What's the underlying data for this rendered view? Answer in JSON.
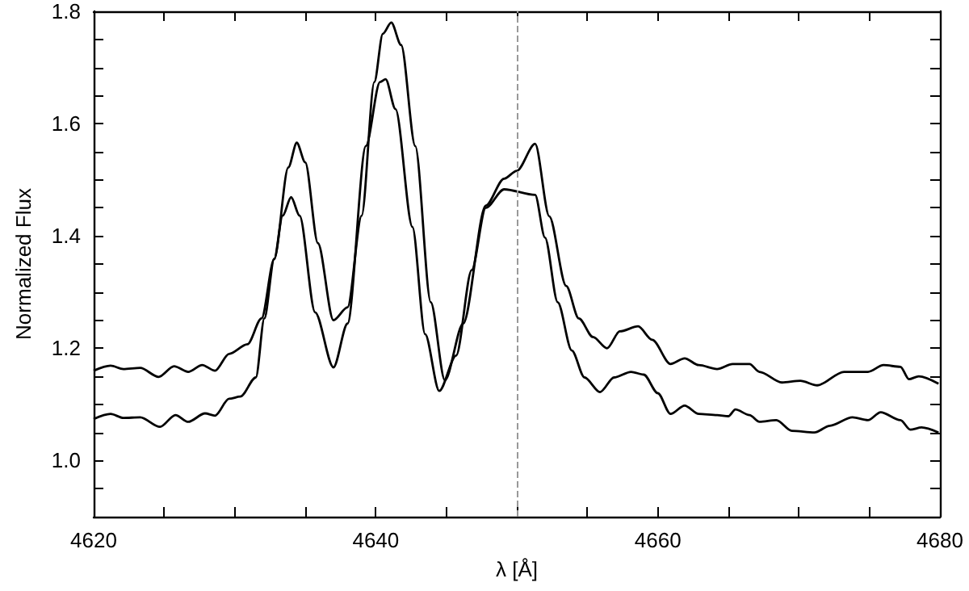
{
  "chart_data": {
    "type": "line",
    "xlabel": "λ [Å]",
    "ylabel": "Normalized Flux",
    "xlim": [
      4620,
      4680
    ],
    "ylim": [
      0.9,
      1.8
    ],
    "xticks": [
      4620,
      {
        "value": 4625,
        "label": null
      },
      {
        "value": 4630,
        "label": null
      },
      {
        "value": 4635,
        "label": null
      },
      4640,
      {
        "value": 4645,
        "label": null
      },
      {
        "value": 4650,
        "label": null
      },
      {
        "value": 4655,
        "label": null
      },
      4660,
      {
        "value": 4665,
        "label": null
      },
      {
        "value": 4670,
        "label": null
      },
      {
        "value": 4675,
        "label": null
      },
      4680
    ],
    "yticks": [
      {
        "value": 0.95,
        "label": null
      },
      {
        "value": 1,
        "label": "1.0"
      },
      {
        "value": 1.05,
        "label": null
      },
      {
        "value": 1.1,
        "label": null
      },
      {
        "value": 1.15,
        "label": null
      },
      {
        "value": 1.2,
        "label": "1.2"
      },
      {
        "value": 1.25,
        "label": null
      },
      {
        "value": 1.3,
        "label": null
      },
      {
        "value": 1.35,
        "label": null
      },
      {
        "value": 1.4,
        "label": "1.4"
      },
      {
        "value": 1.45,
        "label": null
      },
      {
        "value": 1.5,
        "label": null
      },
      {
        "value": 1.55,
        "label": null
      },
      {
        "value": 1.6,
        "label": "1.6"
      },
      {
        "value": 1.65,
        "label": null
      },
      {
        "value": 1.7,
        "label": null
      },
      {
        "value": 1.75,
        "label": null
      },
      {
        "value": 1.8,
        "label": "1.8"
      }
    ],
    "grid": false,
    "marker": "none",
    "line_style": "solid",
    "ref_lines": [
      {
        "axis": "x",
        "value": 4650,
        "color": "#999999",
        "line_style": "dashed"
      }
    ],
    "series": [
      {
        "color": "#000000",
        "x": [
          4620,
          4621.2,
          4622.1,
          4623.3,
          4624.6,
          4625.7,
          4626.7,
          4627.7,
          4628.6,
          4629.6,
          4630.9,
          4631.9,
          4632.8,
          4633.8,
          4634.4,
          4635,
          4635.9,
          4637,
          4638,
          4639,
          4639.9,
          4640.5,
          4641.1,
          4641.8,
          4642.8,
          4643.9,
          4644.9,
          4646.2,
          4647.8,
          4649.1,
          4650,
          4651.3,
          4652.3,
          4653.5,
          4654.4,
          4655.4,
          4656.4,
          4657.3,
          4658.6,
          4659.6,
          4660.9,
          4661.9,
          4662.9,
          4664.2,
          4665.3,
          4666.5,
          4667.2,
          4668.8,
          4670.1,
          4671.3,
          4673.2,
          4674.9,
          4676,
          4677.2,
          4677.8,
          4678.5,
          4679.9
        ],
        "values": [
          1.16,
          1.169,
          1.163,
          1.165,
          1.149,
          1.168,
          1.158,
          1.17,
          1.16,
          1.19,
          1.207,
          1.253,
          1.359,
          1.522,
          1.566,
          1.531,
          1.387,
          1.25,
          1.273,
          1.436,
          1.674,
          1.76,
          1.78,
          1.74,
          1.56,
          1.282,
          1.143,
          1.244,
          1.454,
          1.502,
          1.516,
          1.564,
          1.435,
          1.311,
          1.253,
          1.22,
          1.2,
          1.23,
          1.239,
          1.215,
          1.172,
          1.182,
          1.17,
          1.163,
          1.172,
          1.172,
          1.158,
          1.139,
          1.142,
          1.134,
          1.158,
          1.158,
          1.17,
          1.167,
          1.145,
          1.15,
          1.137
        ]
      },
      {
        "color": "#000000",
        "x": [
          4620,
          4621.2,
          4622.1,
          4623.3,
          4624.7,
          4625.8,
          4626.7,
          4627.9,
          4628.6,
          4629.6,
          4630.4,
          4631.5,
          4632.1,
          4632.8,
          4633.4,
          4634,
          4634.6,
          4635.7,
          4637,
          4638,
          4639.3,
          4640.3,
          4640.7,
          4641.4,
          4642.6,
          4643.5,
          4644.5,
          4645.7,
          4646.8,
          4647.8,
          4649.1,
          4651.3,
          4652,
          4652.9,
          4653.9,
          4654.8,
          4655.9,
          4656.9,
          4658.1,
          4659,
          4660,
          4660.9,
          4661.9,
          4662.9,
          4664.2,
          4665,
          4665.5,
          4666.5,
          4667.2,
          4668.4,
          4669.5,
          4671.1,
          4672.2,
          4673.8,
          4674.9,
          4675.8,
          4677.2,
          4677.9,
          4678.7,
          4679.9
        ],
        "values": [
          1.074,
          1.083,
          1.076,
          1.077,
          1.06,
          1.081,
          1.069,
          1.084,
          1.08,
          1.11,
          1.114,
          1.148,
          1.253,
          1.359,
          1.436,
          1.469,
          1.436,
          1.264,
          1.166,
          1.244,
          1.56,
          1.674,
          1.679,
          1.626,
          1.416,
          1.225,
          1.124,
          1.187,
          1.339,
          1.45,
          1.483,
          1.473,
          1.397,
          1.282,
          1.196,
          1.148,
          1.122,
          1.148,
          1.158,
          1.153,
          1.12,
          1.083,
          1.098,
          1.083,
          1.081,
          1.079,
          1.091,
          1.081,
          1.069,
          1.072,
          1.053,
          1.05,
          1.062,
          1.077,
          1.072,
          1.086,
          1.072,
          1.055,
          1.059,
          1.05
        ]
      }
    ]
  }
}
